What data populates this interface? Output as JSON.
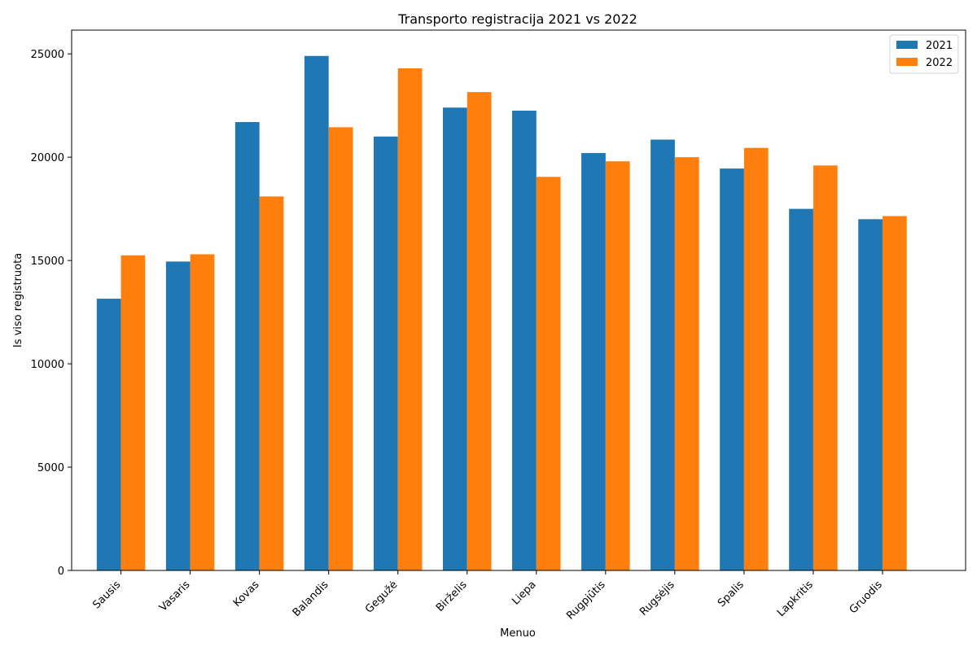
{
  "chart_data": {
    "type": "bar",
    "title": "Transporto registracija 2021 vs 2022",
    "xlabel": "Menuo",
    "ylabel": "Is viso registruota",
    "categories": [
      "Sausis",
      "Vasaris",
      "Kovas",
      "Balandis",
      "Gegužė",
      "Birželis",
      "Liepa",
      "Rugpjūtis",
      "Rugsėjis",
      "Spalis",
      "Lapkritis",
      "Gruodis"
    ],
    "series": [
      {
        "name": "2021",
        "color": "#1f77b4",
        "values": [
          13150,
          14950,
          21700,
          24900,
          21000,
          22400,
          22250,
          20200,
          20850,
          19450,
          17500,
          17000
        ]
      },
      {
        "name": "2022",
        "color": "#ff7f0e",
        "values": [
          15250,
          15300,
          18100,
          21450,
          24300,
          23150,
          19050,
          19800,
          20000,
          20450,
          19600,
          17150
        ]
      }
    ],
    "ylim": [
      0,
      26150
    ],
    "yticks": [
      0,
      5000,
      10000,
      15000,
      20000,
      25000
    ],
    "legend_position": "top-right",
    "grid": false
  }
}
